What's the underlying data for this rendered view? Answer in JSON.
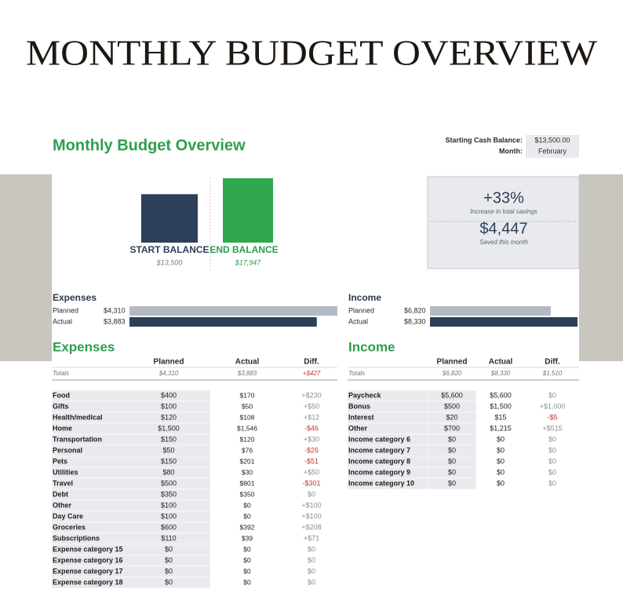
{
  "header": {
    "title": "MONTHLY BUDGET OVERVIEW"
  },
  "sheet": {
    "title": "Monthly Budget Overview",
    "starting_cash_label": "Starting Cash Balance:",
    "starting_cash": "$13,500.00",
    "month_label": "Month:",
    "month": "February"
  },
  "balances": {
    "start_label": "START BALANCE",
    "start": "$13,500",
    "end_label": "END BALANCE",
    "end": "$17,947"
  },
  "savings": {
    "percent": "+33%",
    "percent_caption": "Increase in total savings",
    "amount": "$4,447",
    "amount_caption": "Saved this month"
  },
  "expenses_summary": {
    "title": "Expenses",
    "planned_label": "Planned",
    "planned": "$4,310",
    "actual_label": "Actual",
    "actual": "$3,883"
  },
  "income_summary": {
    "title": "Income",
    "planned_label": "Planned",
    "planned": "$6,820",
    "actual_label": "Actual",
    "actual": "$8,330"
  },
  "expenses": {
    "title": "Expenses",
    "columns": [
      "Planned",
      "Actual",
      "Diff."
    ],
    "totals": [
      "Totals",
      "$4,310",
      "$3,883",
      "+$427"
    ],
    "rows": [
      [
        "Food",
        "$400",
        "$170",
        "+$230"
      ],
      [
        "Gifts",
        "$100",
        "$50",
        "+$50"
      ],
      [
        "Health/medical",
        "$120",
        "$108",
        "+$12"
      ],
      [
        "Home",
        "$1,500",
        "$1,546",
        "-$46"
      ],
      [
        "Transportation",
        "$150",
        "$120",
        "+$30"
      ],
      [
        "Personal",
        "$50",
        "$76",
        "-$26"
      ],
      [
        "Pets",
        "$150",
        "$201",
        "-$51"
      ],
      [
        "Utilities",
        "$80",
        "$30",
        "+$50"
      ],
      [
        "Travel",
        "$500",
        "$801",
        "-$301"
      ],
      [
        "Debt",
        "$350",
        "$350",
        "$0"
      ],
      [
        "Other",
        "$100",
        "$0",
        "+$100"
      ],
      [
        "Day Care",
        "$100",
        "$0",
        "+$100"
      ],
      [
        "Groceries",
        "$600",
        "$392",
        "+$208"
      ],
      [
        "Subscriptions",
        "$110",
        "$39",
        "+$71"
      ],
      [
        "Expense category 15",
        "$0",
        "$0",
        "$0"
      ],
      [
        "Expense category 16",
        "$0",
        "$0",
        "$0"
      ],
      [
        "Expense category 17",
        "$0",
        "$0",
        "$0"
      ],
      [
        "Expense category 18",
        "$0",
        "$0",
        "$0"
      ]
    ]
  },
  "income": {
    "title": "Income",
    "columns": [
      "Planned",
      "Actual",
      "Diff."
    ],
    "totals": [
      "Totals",
      "$6,820",
      "$8,330",
      "$1,510"
    ],
    "rows": [
      [
        "Paycheck",
        "$5,600",
        "$5,600",
        "$0"
      ],
      [
        "Bonus",
        "$500",
        "$1,500",
        "+$1,000"
      ],
      [
        "Interest",
        "$20",
        "$15",
        "-$5"
      ],
      [
        "Other",
        "$700",
        "$1,215",
        "+$515"
      ],
      [
        "Income category 6",
        "$0",
        "$0",
        "$0"
      ],
      [
        "Income category 7",
        "$0",
        "$0",
        "$0"
      ],
      [
        "Income category 8",
        "$0",
        "$0",
        "$0"
      ],
      [
        "Income category 9",
        "$0",
        "$0",
        "$0"
      ],
      [
        "Income category 10",
        "$0",
        "$0",
        "$0"
      ]
    ]
  }
}
